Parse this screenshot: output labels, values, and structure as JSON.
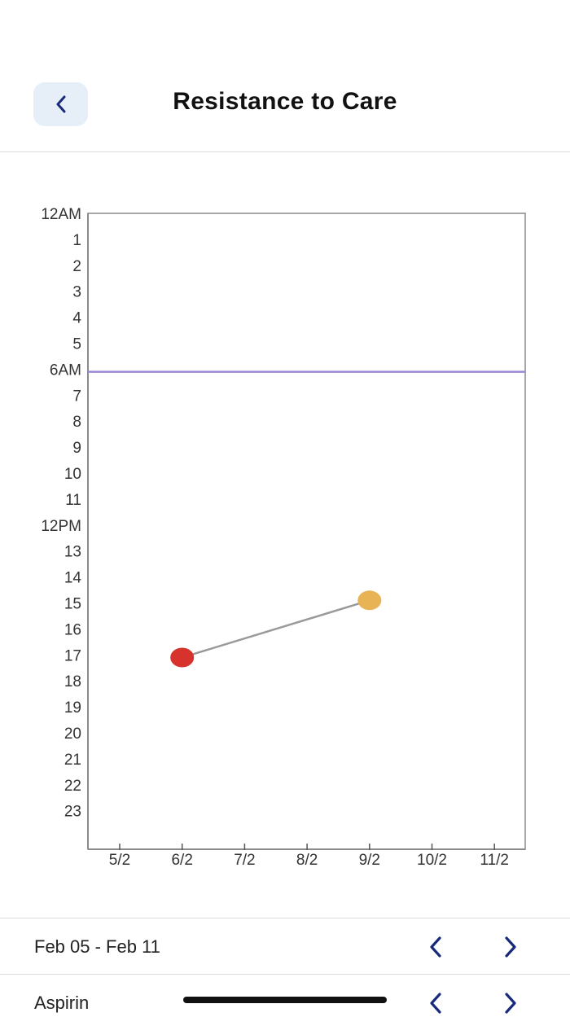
{
  "header": {
    "title": "Resistance to Care",
    "back_icon": "chevron-left-icon"
  },
  "colors": {
    "accent": "#1a2a7a",
    "back_bg": "#e6eef8",
    "reference_line": "#9b87d6",
    "connector": "#999999",
    "point_red": "#d7322b",
    "point_orange": "#e8b355"
  },
  "chart_data": {
    "type": "scatter",
    "title": "",
    "xlabel": "",
    "ylabel": "",
    "x_ticks": [
      "5/2",
      "6/2",
      "7/2",
      "8/2",
      "9/2",
      "10/2",
      "11/2"
    ],
    "y_ticks": [
      "12AM",
      "1",
      "2",
      "3",
      "4",
      "5",
      "6AM",
      "7",
      "8",
      "9",
      "10",
      "11",
      "12PM",
      "13",
      "14",
      "15",
      "16",
      "17",
      "18",
      "19",
      "20",
      "21",
      "22",
      "23"
    ],
    "ylim": [
      0,
      24
    ],
    "y_inverted": true,
    "reference_line": {
      "y": 6.1
    },
    "series": [
      {
        "points": [
          {
            "x": "6/2",
            "y": 17.1,
            "color": "#d7322b"
          },
          {
            "x": "9/2",
            "y": 14.9,
            "color": "#e8b355"
          }
        ],
        "connected": true
      }
    ],
    "grid": false,
    "legend": "none"
  },
  "footer": {
    "week_range": "Feb 05 - Feb 11",
    "medication": "Aspirin",
    "prev_icon": "chevron-left-icon",
    "next_icon": "chevron-right-icon"
  }
}
